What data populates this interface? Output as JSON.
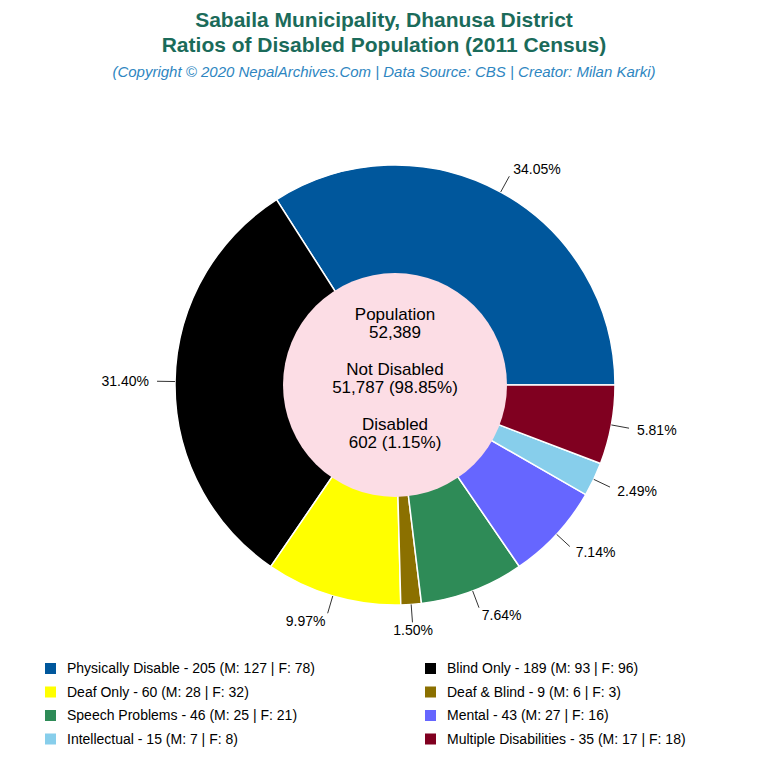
{
  "chart_data": {
    "type": "pie",
    "title": [
      "Sabaila Municipality, Dhanusa District",
      "Ratios of Disabled Population (2011 Census)"
    ],
    "subtitle": "(Copyright © 2020 NepalArchives.Com | Data Source: CBS | Creator: Milan Karki)",
    "categories": [
      "Physically Disable - 205 (M: 127 | F: 78)",
      "Blind Only - 189 (M: 93 | F: 96)",
      "Deaf Only - 60 (M: 28 | F: 32)",
      "Deaf & Blind - 9 (M: 6 | F: 3)",
      "Speech Problems - 46 (M: 25 | F: 21)",
      "Mental - 43 (M: 27 | F: 16)",
      "Intellectual - 15 (M: 7 | F: 8)",
      "Multiple Disabilities - 35 (M: 17 | F: 18)"
    ],
    "values": [
      34.05,
      31.4,
      9.97,
      1.5,
      7.64,
      7.14,
      2.49,
      5.81
    ],
    "value_labels": [
      "34.05%",
      "31.40%",
      "9.97%",
      "1.50%",
      "7.64%",
      "7.14%",
      "2.49%",
      "5.81%"
    ],
    "colors": [
      "#00579c",
      "#000000",
      "#ffff00",
      "#8b7000",
      "#2e8b57",
      "#6666ff",
      "#87ceeb",
      "#800020"
    ],
    "data_labels": true,
    "legend": "bottom",
    "annotations": [
      "Population",
      "52,389",
      "Not Disabled",
      "51,787 (98.85%)",
      "Disabled",
      "602 (1.15%)"
    ]
  }
}
